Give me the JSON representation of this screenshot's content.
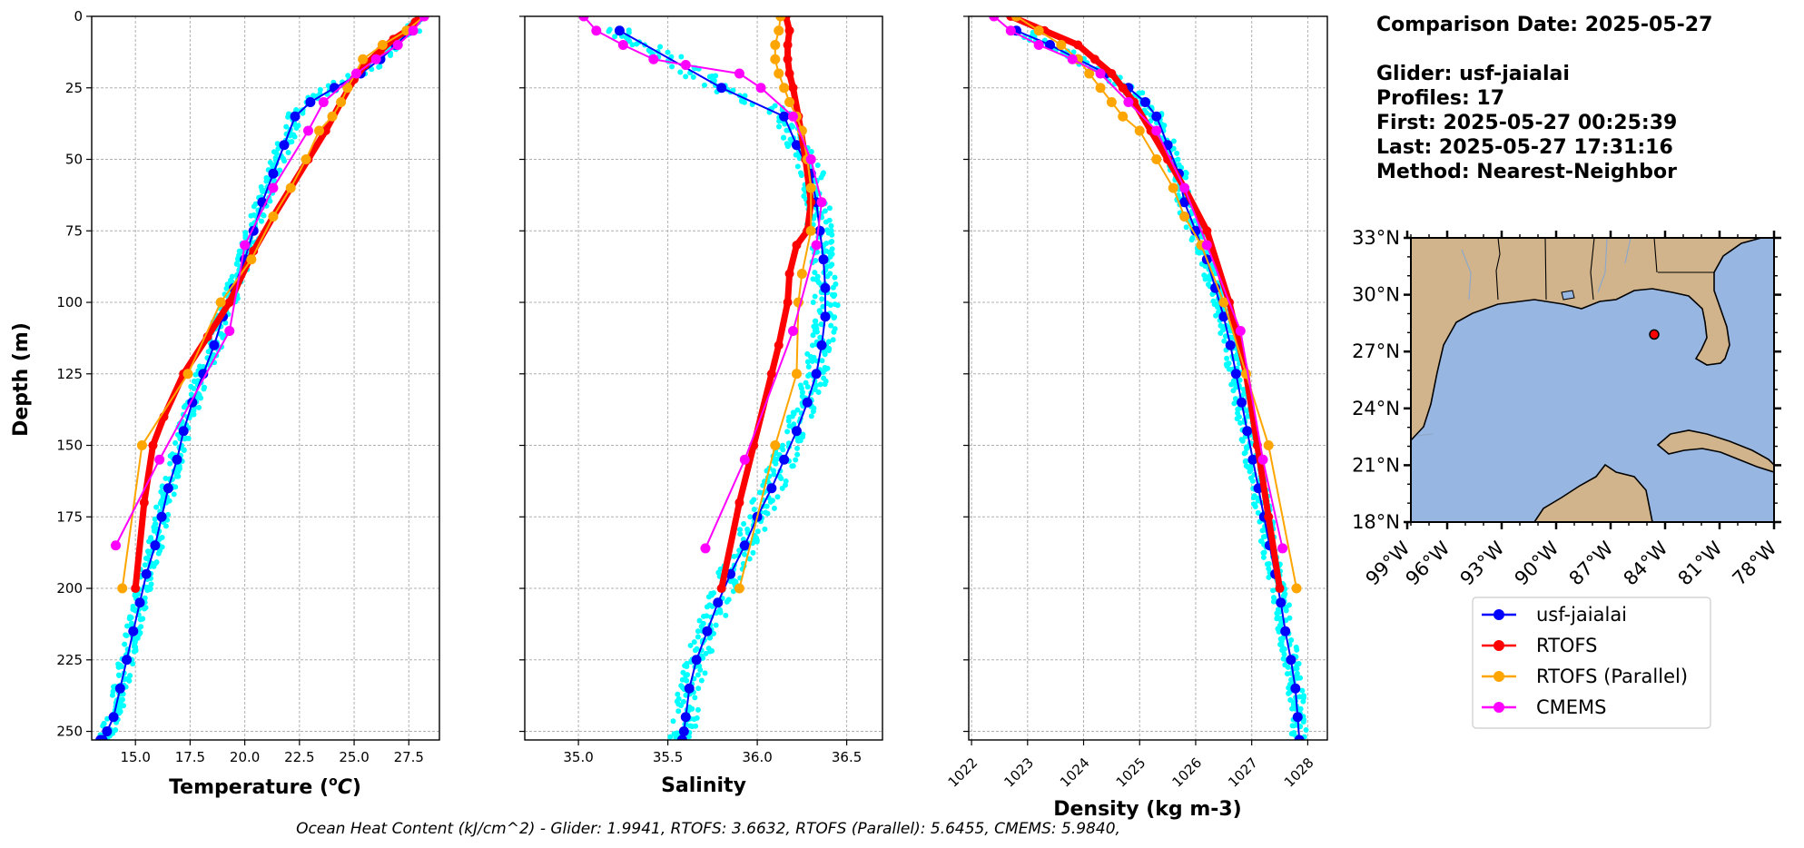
{
  "info": {
    "comparison_date": "Comparison Date: 2025-05-27",
    "glider": "Glider: usf-jaialai",
    "profiles": "Profiles: 17",
    "first": "First: 2025-05-27 00:25:39",
    "last": "Last: 2025-05-27 17:31:16",
    "method": "Method: Nearest-Neighbor"
  },
  "footer": "Ocean Heat Content (kJ/cm^2) - Glider: 1.9941,  RTOFS: 3.6632,  RTOFS (Parallel): 5.6455,  CMEMS: 5.9840,",
  "colors": {
    "glider_cloud": "#00ffff",
    "glider": "#0000ff",
    "rtofs": "#ff0000",
    "rtofs_parallel": "#ffa500",
    "cmems": "#ff00ff",
    "land": "#d2b48c",
    "ocean": "#97b6e1"
  },
  "legend": [
    {
      "label": "usf-jaialai",
      "color": "#0000ff"
    },
    {
      "label": "RTOFS",
      "color": "#ff0000"
    },
    {
      "label": "RTOFS (Parallel)",
      "color": "#ffa500"
    },
    {
      "label": "CMEMS",
      "color": "#ff00ff"
    }
  ],
  "map": {
    "lat_labels": [
      "33°N",
      "30°N",
      "27°N",
      "24°N",
      "21°N",
      "18°N"
    ],
    "lon_labels": [
      "99°W",
      "96°W",
      "93°W",
      "90°W",
      "87°W",
      "84°W",
      "81°W",
      "78°W"
    ],
    "extent": {
      "lon": [
        -98,
        -78
      ],
      "lat": [
        18,
        33
      ]
    },
    "glider_position": {
      "lon": -84.6,
      "lat": 27.9
    }
  },
  "chart_data": [
    {
      "type": "line",
      "xlabel": "Temperature (°C)",
      "ylabel": "Depth (m)",
      "xlim": [
        13.0,
        28.9
      ],
      "ylim": [
        253,
        0
      ],
      "xticks": [
        "15.0",
        "17.5",
        "20.0",
        "22.5",
        "25.0",
        "27.5"
      ],
      "xtick_values": [
        15.0,
        17.5,
        20.0,
        22.5,
        25.0,
        27.5
      ],
      "yticks": [
        "0",
        "25",
        "50",
        "75",
        "100",
        "125",
        "150",
        "175",
        "200",
        "225",
        "250"
      ],
      "ytick_values": [
        0,
        25,
        50,
        75,
        100,
        125,
        150,
        175,
        200,
        225,
        250
      ],
      "grid": true,
      "series": [
        {
          "name": "usf-jaialai",
          "x": [
            28.1,
            27.6,
            26.9,
            26.2,
            25.3,
            24.1,
            23.0,
            22.3,
            21.8,
            21.3,
            20.8,
            20.4,
            20.0,
            19.5,
            19.0,
            18.6,
            18.1,
            17.6,
            17.2,
            16.9,
            16.5,
            16.2,
            15.9,
            15.5,
            15.2,
            14.9,
            14.6,
            14.3,
            14.0,
            13.7,
            13.5,
            13.4
          ],
          "y": [
            0,
            5,
            10,
            15,
            20,
            25,
            30,
            35,
            45,
            55,
            65,
            75,
            85,
            95,
            105,
            115,
            125,
            135,
            145,
            155,
            165,
            175,
            185,
            195,
            205,
            215,
            225,
            235,
            245,
            250,
            253,
            253
          ]
        },
        {
          "name": "RTOFS",
          "x": [
            28.0,
            27.8,
            27.4,
            26.8,
            26.2,
            25.5,
            25.0,
            24.4,
            23.7,
            22.9,
            22.1,
            21.3,
            20.4,
            19.3,
            18.3,
            17.2,
            16.3,
            15.8,
            15.4,
            15.0
          ],
          "y": [
            0,
            2,
            5,
            8,
            12,
            17,
            22,
            30,
            40,
            50,
            60,
            70,
            82,
            100,
            112,
            125,
            140,
            150,
            170,
            200
          ]
        },
        {
          "name": "RTOFS (Parallel)",
          "x": [
            28.2,
            27.4,
            26.3,
            25.4,
            24.7,
            24.4,
            24.0,
            23.4,
            22.8,
            22.1,
            21.3,
            20.3,
            18.9,
            17.4,
            15.3,
            14.4
          ],
          "y": [
            0,
            5,
            10,
            15,
            25,
            30,
            35,
            40,
            50,
            60,
            70,
            85,
            100,
            125,
            150,
            200
          ]
        },
        {
          "name": "CMEMS",
          "x": [
            28.2,
            27.7,
            27.0,
            26.0,
            25.1,
            23.6,
            22.9,
            21.3,
            20.0,
            19.3,
            16.1,
            14.1
          ],
          "y": [
            0,
            5,
            10,
            15,
            20,
            30,
            40,
            60,
            80,
            110,
            155,
            185
          ]
        }
      ]
    },
    {
      "type": "line",
      "xlabel": "Salinity",
      "xlim": [
        34.7,
        36.7
      ],
      "ylim": [
        253,
        0
      ],
      "xticks": [
        "35.0",
        "35.5",
        "36.0",
        "36.5"
      ],
      "xtick_values": [
        35.0,
        35.5,
        36.0,
        36.5
      ],
      "grid": true,
      "series": [
        {
          "name": "usf-jaialai",
          "x": [
            35.23,
            35.8,
            36.15,
            36.22,
            36.3,
            36.33,
            36.35,
            36.37,
            36.38,
            36.38,
            36.36,
            36.33,
            36.28,
            36.22,
            36.15,
            36.08,
            36.0,
            35.93,
            35.85,
            35.78,
            35.72,
            35.66,
            35.62,
            35.6,
            35.59,
            35.58,
            35.58
          ],
          "y": [
            5,
            25,
            35,
            45,
            55,
            65,
            75,
            85,
            95,
            105,
            115,
            125,
            135,
            145,
            155,
            165,
            175,
            185,
            195,
            205,
            215,
            225,
            235,
            245,
            250,
            253,
            253
          ]
        },
        {
          "name": "RTOFS",
          "x": [
            36.16,
            36.18,
            36.17,
            36.17,
            36.18,
            36.2,
            36.23,
            36.27,
            36.3,
            36.28,
            36.22,
            36.18,
            36.17,
            36.12,
            36.08,
            35.98,
            35.9,
            35.8
          ],
          "y": [
            0,
            5,
            10,
            15,
            20,
            25,
            35,
            50,
            65,
            75,
            80,
            90,
            100,
            115,
            125,
            150,
            170,
            200
          ]
        },
        {
          "name": "RTOFS (Parallel)",
          "x": [
            36.13,
            36.12,
            36.1,
            36.1,
            36.12,
            36.15,
            36.18,
            36.22,
            36.25,
            36.28,
            36.3,
            36.3,
            36.25,
            36.23,
            36.22,
            36.1,
            35.9
          ],
          "y": [
            0,
            5,
            10,
            15,
            20,
            25,
            30,
            35,
            40,
            50,
            60,
            75,
            90,
            100,
            125,
            150,
            200
          ]
        },
        {
          "name": "CMEMS",
          "x": [
            35.03,
            35.1,
            35.25,
            35.42,
            35.6,
            35.9,
            36.02,
            36.2,
            36.3,
            36.36,
            36.33,
            36.2,
            35.93,
            35.71
          ],
          "y": [
            0,
            5,
            10,
            15,
            17,
            20,
            25,
            35,
            50,
            65,
            80,
            110,
            155,
            186
          ]
        }
      ]
    },
    {
      "type": "line",
      "xlabel": "Density (kg m-3)",
      "xlim": [
        1021.95,
        1028.35
      ],
      "ylim": [
        253,
        0
      ],
      "xticks": [
        "1022",
        "1023",
        "1024",
        "1025",
        "1026",
        "1027",
        "1028"
      ],
      "xtick_values": [
        1022,
        1023,
        1024,
        1025,
        1026,
        1027,
        1028
      ],
      "grid": true,
      "series": [
        {
          "name": "usf-jaialai",
          "x": [
            1022.8,
            1023.4,
            1023.9,
            1024.4,
            1024.8,
            1025.1,
            1025.3,
            1025.5,
            1025.7,
            1025.8,
            1026.0,
            1026.2,
            1026.35,
            1026.5,
            1026.62,
            1026.72,
            1026.82,
            1026.92,
            1027.02,
            1027.12,
            1027.22,
            1027.32,
            1027.42,
            1027.52,
            1027.6,
            1027.7,
            1027.78,
            1027.82,
            1027.85
          ],
          "y": [
            5,
            10,
            15,
            20,
            25,
            30,
            35,
            45,
            55,
            65,
            75,
            85,
            95,
            105,
            115,
            125,
            135,
            145,
            155,
            165,
            175,
            185,
            195,
            205,
            215,
            225,
            235,
            245,
            253
          ]
        },
        {
          "name": "RTOFS",
          "x": [
            1022.7,
            1023.3,
            1023.9,
            1024.2,
            1024.5,
            1024.7,
            1024.9,
            1025.2,
            1025.5,
            1025.8,
            1026.2,
            1026.6,
            1026.9,
            1027.1,
            1027.3,
            1027.5
          ],
          "y": [
            0,
            5,
            10,
            15,
            20,
            25,
            30,
            40,
            50,
            60,
            75,
            100,
            125,
            150,
            175,
            200
          ]
        },
        {
          "name": "RTOFS (Parallel)",
          "x": [
            1022.8,
            1023.2,
            1023.6,
            1023.9,
            1024.1,
            1024.3,
            1024.5,
            1024.7,
            1025.0,
            1025.3,
            1025.6,
            1025.8,
            1026.1,
            1026.5,
            1026.9,
            1027.3,
            1027.8
          ],
          "y": [
            0,
            5,
            10,
            15,
            20,
            25,
            30,
            35,
            40,
            50,
            60,
            70,
            80,
            100,
            125,
            150,
            200
          ]
        },
        {
          "name": "CMEMS",
          "x": [
            1022.4,
            1022.7,
            1023.2,
            1023.8,
            1024.3,
            1024.8,
            1025.3,
            1025.8,
            1026.2,
            1026.8,
            1027.2,
            1027.55
          ],
          "y": [
            0,
            5,
            10,
            15,
            20,
            30,
            40,
            60,
            80,
            110,
            155,
            186
          ]
        }
      ]
    }
  ]
}
